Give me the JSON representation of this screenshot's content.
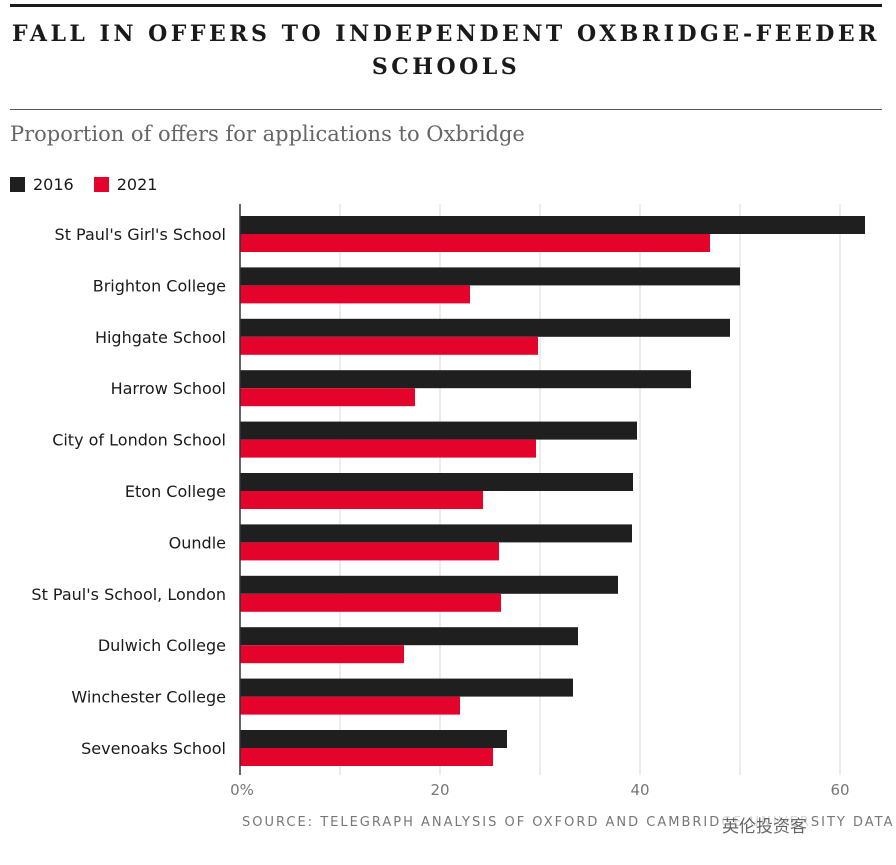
{
  "title": "FALL IN OFFERS TO INDEPENDENT OXBRIDGE-FEEDER SCHOOLS",
  "subtitle": "Proportion of offers for applications to Oxbridge",
  "source": "SOURCE: TELEGRAPH ANALYSIS OF OXFORD AND CAMBRIDGE UNIVERSITY DATA",
  "watermark": "英伦投资客",
  "colors": {
    "2016": "#1f1f1f",
    "2021": "#e4032a",
    "grid": "#d8d8d8",
    "axis": "#333333"
  },
  "chart_data": {
    "type": "bar",
    "orientation": "horizontal",
    "title": "FALL IN OFFERS TO INDEPENDENT OXBRIDGE-FEEDER SCHOOLS",
    "subtitle": "Proportion of offers for applications to Oxbridge",
    "categories": [
      "St Paul's Girl's School",
      "Brighton College",
      "Highgate School",
      "Harrow School",
      "City of London School",
      "Eton College",
      "Oundle",
      "St Paul's School, London",
      "Dulwich College",
      "Winchester College",
      "Sevenoaks School"
    ],
    "series": [
      {
        "name": "2016",
        "values": [
          62.5,
          50.0,
          49.0,
          45.1,
          39.7,
          39.3,
          39.2,
          37.8,
          33.8,
          33.3,
          26.7
        ]
      },
      {
        "name": "2021",
        "values": [
          47.0,
          23.0,
          29.8,
          17.5,
          29.6,
          24.3,
          25.9,
          26.1,
          16.4,
          22.0,
          25.3
        ]
      }
    ],
    "xlim": [
      0,
      64
    ],
    "xticks": [
      0,
      20,
      40,
      60
    ],
    "xtick_labels": [
      "0%",
      "20",
      "40",
      "60"
    ],
    "grid": true,
    "legend_position": "top-left"
  }
}
